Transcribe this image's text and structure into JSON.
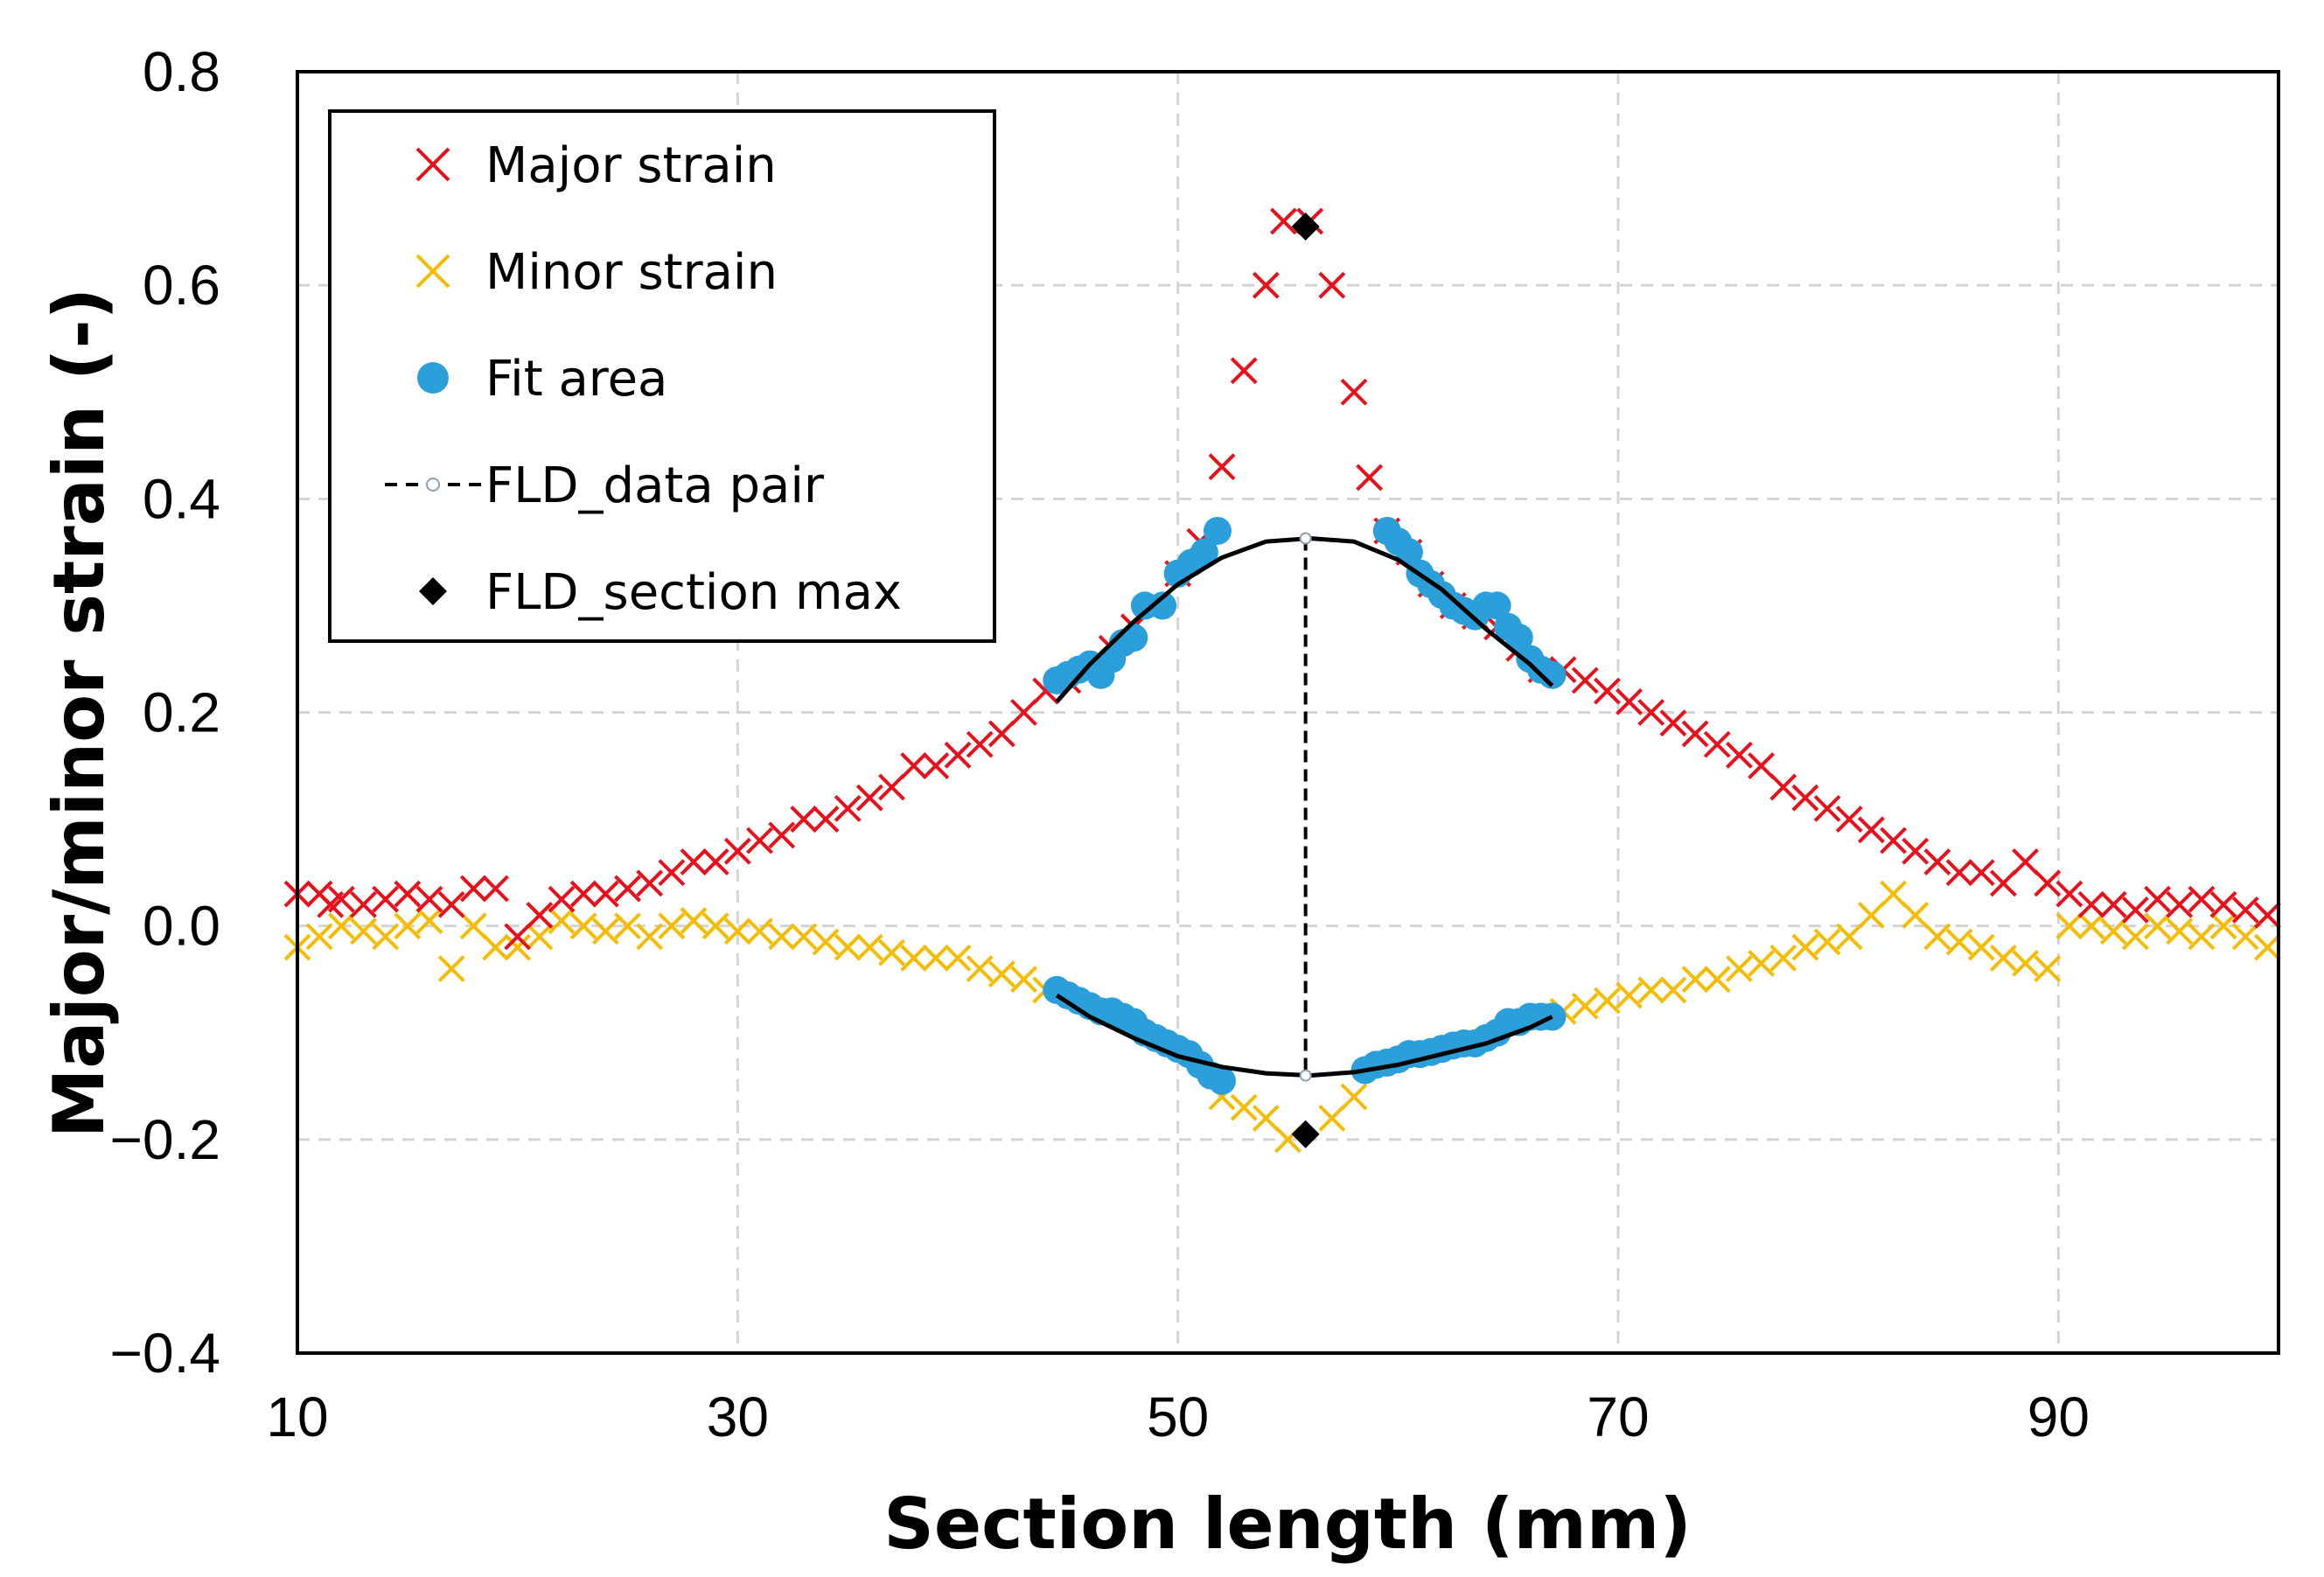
{
  "chart_data": {
    "type": "scatter",
    "title": "",
    "xlabel": "Section length (mm)",
    "ylabel": "Major/minor strain (-)",
    "xlim": [
      10,
      100
    ],
    "ylim": [
      -0.4,
      0.8
    ],
    "x_ticks": [
      10,
      30,
      50,
      70,
      90
    ],
    "y_ticks": [
      -0.4,
      -0.2,
      0.0,
      0.2,
      0.4,
      0.6,
      0.8
    ],
    "y_tick_labels": [
      "−0.4",
      "−0.2",
      "0.0",
      "0.2",
      "0.4",
      "0.6",
      "0.8"
    ],
    "x_tick_labels": [
      "10",
      "30",
      "50",
      "70",
      "90"
    ],
    "grid": true,
    "legend_position": "top-left",
    "colors": {
      "major": "#e8101b",
      "minor": "#f5bc05",
      "fit": "#2b9fd9",
      "line": "#000000",
      "grid": "#d4d4d4"
    },
    "legend": [
      {
        "key": "major",
        "label": "Major strain",
        "marker": "x-red"
      },
      {
        "key": "minor",
        "label": "Minor strain",
        "marker": "x-yellow"
      },
      {
        "key": "fit",
        "label": "Fit area",
        "marker": "circle-blue"
      },
      {
        "key": "pair",
        "label": "FLD_data pair",
        "marker": "dashed-line-open-circle"
      },
      {
        "key": "max",
        "label": "FLD_section max",
        "marker": "diamond-black"
      }
    ],
    "series": [
      {
        "name": "Major strain",
        "marker": "x",
        "points": [
          [
            10,
            0.03
          ],
          [
            11,
            0.03
          ],
          [
            11.5,
            0.02
          ],
          [
            12,
            0.025
          ],
          [
            13,
            0.02
          ],
          [
            14,
            0.025
          ],
          [
            15,
            0.03
          ],
          [
            16,
            0.025
          ],
          [
            17,
            0.02
          ],
          [
            18,
            0.035
          ],
          [
            19,
            0.035
          ],
          [
            20,
            -0.01
          ],
          [
            21,
            0.01
          ],
          [
            22,
            0.025
          ],
          [
            23,
            0.03
          ],
          [
            24,
            0.03
          ],
          [
            25,
            0.035
          ],
          [
            26,
            0.04
          ],
          [
            27,
            0.05
          ],
          [
            28,
            0.06
          ],
          [
            29,
            0.06
          ],
          [
            30,
            0.07
          ],
          [
            31,
            0.08
          ],
          [
            32,
            0.085
          ],
          [
            33,
            0.1
          ],
          [
            34,
            0.1
          ],
          [
            35,
            0.11
          ],
          [
            36,
            0.12
          ],
          [
            37,
            0.13
          ],
          [
            38,
            0.15
          ],
          [
            39,
            0.15
          ],
          [
            40,
            0.16
          ],
          [
            41,
            0.17
          ],
          [
            42,
            0.18
          ],
          [
            43,
            0.2
          ],
          [
            44,
            0.22
          ],
          [
            45,
            0.23
          ],
          [
            46,
            0.24
          ],
          [
            47,
            0.26
          ],
          [
            48,
            0.28
          ],
          [
            49,
            0.3
          ],
          [
            50,
            0.33
          ],
          [
            51,
            0.36
          ],
          [
            52,
            0.43
          ],
          [
            53,
            0.52
          ],
          [
            54,
            0.6
          ],
          [
            54.8,
            0.66
          ],
          [
            56,
            0.66
          ],
          [
            57,
            0.6
          ],
          [
            58,
            0.5
          ],
          [
            58.7,
            0.42
          ],
          [
            59.5,
            0.37
          ],
          [
            60.5,
            0.35
          ],
          [
            61.5,
            0.32
          ],
          [
            62.5,
            0.3
          ],
          [
            63.5,
            0.29
          ],
          [
            64.5,
            0.28
          ],
          [
            65.5,
            0.26
          ],
          [
            66.5,
            0.24
          ],
          [
            67.5,
            0.24
          ],
          [
            68.5,
            0.23
          ],
          [
            69.5,
            0.22
          ],
          [
            70.5,
            0.21
          ],
          [
            71.5,
            0.2
          ],
          [
            72.5,
            0.19
          ],
          [
            73.5,
            0.18
          ],
          [
            74.5,
            0.17
          ],
          [
            75.5,
            0.16
          ],
          [
            76.5,
            0.15
          ],
          [
            77.5,
            0.13
          ],
          [
            78.5,
            0.12
          ],
          [
            79.5,
            0.11
          ],
          [
            80.5,
            0.1
          ],
          [
            81.5,
            0.09
          ],
          [
            82.5,
            0.08
          ],
          [
            83.5,
            0.07
          ],
          [
            84.5,
            0.06
          ],
          [
            85.5,
            0.05
          ],
          [
            86.5,
            0.05
          ],
          [
            87.5,
            0.04
          ],
          [
            88.5,
            0.06
          ],
          [
            89.5,
            0.04
          ],
          [
            90.5,
            0.03
          ],
          [
            91.5,
            0.02
          ],
          [
            92.5,
            0.02
          ],
          [
            93.5,
            0.015
          ],
          [
            94.5,
            0.025
          ],
          [
            95.5,
            0.02
          ],
          [
            96.5,
            0.025
          ],
          [
            97.5,
            0.02
          ],
          [
            98.5,
            0.015
          ],
          [
            99.5,
            0.01
          ]
        ]
      },
      {
        "name": "Minor strain",
        "marker": "x",
        "points": [
          [
            10,
            -0.02
          ],
          [
            11,
            -0.01
          ],
          [
            12,
            0.0
          ],
          [
            13,
            -0.005
          ],
          [
            14,
            -0.01
          ],
          [
            15,
            0.0
          ],
          [
            16,
            0.005
          ],
          [
            17,
            -0.04
          ],
          [
            18,
            0.0
          ],
          [
            19,
            -0.02
          ],
          [
            20,
            -0.02
          ],
          [
            21,
            -0.01
          ],
          [
            22,
            0.005
          ],
          [
            23,
            0.0
          ],
          [
            24,
            -0.005
          ],
          [
            25,
            0.0
          ],
          [
            26,
            -0.01
          ],
          [
            27,
            0.0
          ],
          [
            28,
            0.005
          ],
          [
            29,
            0.0
          ],
          [
            30,
            -0.005
          ],
          [
            31,
            -0.005
          ],
          [
            32,
            -0.01
          ],
          [
            33,
            -0.01
          ],
          [
            34,
            -0.015
          ],
          [
            35,
            -0.02
          ],
          [
            36,
            -0.02
          ],
          [
            37,
            -0.025
          ],
          [
            38,
            -0.03
          ],
          [
            39,
            -0.03
          ],
          [
            40,
            -0.03
          ],
          [
            41,
            -0.04
          ],
          [
            42,
            -0.045
          ],
          [
            43,
            -0.05
          ],
          [
            44,
            -0.06
          ],
          [
            52,
            -0.16
          ],
          [
            53,
            -0.17
          ],
          [
            54,
            -0.18
          ],
          [
            55,
            -0.2
          ],
          [
            57,
            -0.18
          ],
          [
            58,
            -0.16
          ],
          [
            67.5,
            -0.08
          ],
          [
            68.5,
            -0.075
          ],
          [
            69.5,
            -0.07
          ],
          [
            70.5,
            -0.065
          ],
          [
            71.5,
            -0.06
          ],
          [
            72.5,
            -0.06
          ],
          [
            73.5,
            -0.05
          ],
          [
            74.5,
            -0.05
          ],
          [
            75.5,
            -0.04
          ],
          [
            76.5,
            -0.035
          ],
          [
            77.5,
            -0.03
          ],
          [
            78.5,
            -0.02
          ],
          [
            79.5,
            -0.015
          ],
          [
            80.5,
            -0.01
          ],
          [
            81.5,
            0.01
          ],
          [
            82.5,
            0.03
          ],
          [
            83.5,
            0.01
          ],
          [
            84.5,
            -0.01
          ],
          [
            85.5,
            -0.015
          ],
          [
            86.5,
            -0.02
          ],
          [
            87.5,
            -0.03
          ],
          [
            88.5,
            -0.035
          ],
          [
            89.5,
            -0.04
          ],
          [
            90.5,
            0.0
          ],
          [
            91.5,
            0.0
          ],
          [
            92.5,
            -0.005
          ],
          [
            93.5,
            -0.01
          ],
          [
            94.5,
            0.0
          ],
          [
            95.5,
            -0.005
          ],
          [
            96.5,
            -0.01
          ],
          [
            97.5,
            0.0
          ],
          [
            98.5,
            -0.01
          ],
          [
            99.5,
            -0.02
          ]
        ]
      },
      {
        "name": "Fit area",
        "marker": "circle",
        "points": [
          [
            44.5,
            0.23
          ],
          [
            45,
            0.235
          ],
          [
            45.5,
            0.24
          ],
          [
            46,
            0.245
          ],
          [
            46.5,
            0.235
          ],
          [
            47,
            0.25
          ],
          [
            47.5,
            0.265
          ],
          [
            48,
            0.27
          ],
          [
            48.5,
            0.3
          ],
          [
            49.3,
            0.3
          ],
          [
            50,
            0.33
          ],
          [
            50.6,
            0.34
          ],
          [
            51.2,
            0.35
          ],
          [
            51.8,
            0.37
          ],
          [
            59.5,
            0.37
          ],
          [
            60,
            0.36
          ],
          [
            60.5,
            0.35
          ],
          [
            61,
            0.33
          ],
          [
            61.5,
            0.32
          ],
          [
            62,
            0.31
          ],
          [
            62.5,
            0.3
          ],
          [
            63,
            0.295
          ],
          [
            63.5,
            0.29
          ],
          [
            64,
            0.3
          ],
          [
            64.5,
            0.3
          ],
          [
            65,
            0.28
          ],
          [
            65.5,
            0.27
          ],
          [
            66,
            0.25
          ],
          [
            66.5,
            0.24
          ],
          [
            67,
            0.235
          ],
          [
            44.5,
            -0.06
          ],
          [
            45,
            -0.065
          ],
          [
            45.5,
            -0.07
          ],
          [
            46,
            -0.075
          ],
          [
            46.5,
            -0.08
          ],
          [
            47,
            -0.08
          ],
          [
            47.5,
            -0.085
          ],
          [
            48,
            -0.09
          ],
          [
            48.5,
            -0.1
          ],
          [
            49,
            -0.105
          ],
          [
            49.5,
            -0.11
          ],
          [
            50,
            -0.115
          ],
          [
            50.5,
            -0.12
          ],
          [
            51,
            -0.13
          ],
          [
            51.5,
            -0.14
          ],
          [
            52,
            -0.145
          ],
          [
            58.5,
            -0.135
          ],
          [
            59,
            -0.13
          ],
          [
            59.5,
            -0.128
          ],
          [
            60,
            -0.125
          ],
          [
            60.5,
            -0.12
          ],
          [
            61,
            -0.12
          ],
          [
            61.5,
            -0.118
          ],
          [
            62,
            -0.115
          ],
          [
            62.5,
            -0.112
          ],
          [
            63,
            -0.11
          ],
          [
            63.5,
            -0.11
          ],
          [
            64,
            -0.105
          ],
          [
            64.5,
            -0.1
          ],
          [
            65,
            -0.09
          ],
          [
            65.5,
            -0.09
          ],
          [
            66,
            -0.085
          ],
          [
            66.5,
            -0.085
          ],
          [
            67,
            -0.085
          ]
        ]
      },
      {
        "name": "Fit curve major",
        "marker": "line",
        "points": [
          [
            44.5,
            0.21
          ],
          [
            46,
            0.245
          ],
          [
            48,
            0.285
          ],
          [
            50,
            0.32
          ],
          [
            52,
            0.345
          ],
          [
            54,
            0.36
          ],
          [
            56,
            0.363
          ],
          [
            58,
            0.36
          ],
          [
            60,
            0.343
          ],
          [
            62,
            0.315
          ],
          [
            64,
            0.278
          ],
          [
            66,
            0.245
          ],
          [
            67,
            0.225
          ]
        ]
      },
      {
        "name": "Fit curve minor",
        "marker": "line",
        "points": [
          [
            44.5,
            -0.065
          ],
          [
            46,
            -0.085
          ],
          [
            48,
            -0.105
          ],
          [
            50,
            -0.122
          ],
          [
            52,
            -0.132
          ],
          [
            54,
            -0.138
          ],
          [
            56,
            -0.14
          ],
          [
            58,
            -0.137
          ],
          [
            60,
            -0.13
          ],
          [
            62,
            -0.12
          ],
          [
            64,
            -0.11
          ],
          [
            66,
            -0.095
          ],
          [
            67,
            -0.085
          ]
        ]
      },
      {
        "name": "FLD_data pair",
        "marker": "dashed-line",
        "points": [
          [
            55.8,
            0.363
          ],
          [
            55.8,
            -0.14
          ]
        ]
      },
      {
        "name": "FLD_section max",
        "marker": "diamond",
        "points": [
          [
            55.8,
            0.655
          ],
          [
            55.8,
            -0.195
          ]
        ]
      }
    ]
  }
}
